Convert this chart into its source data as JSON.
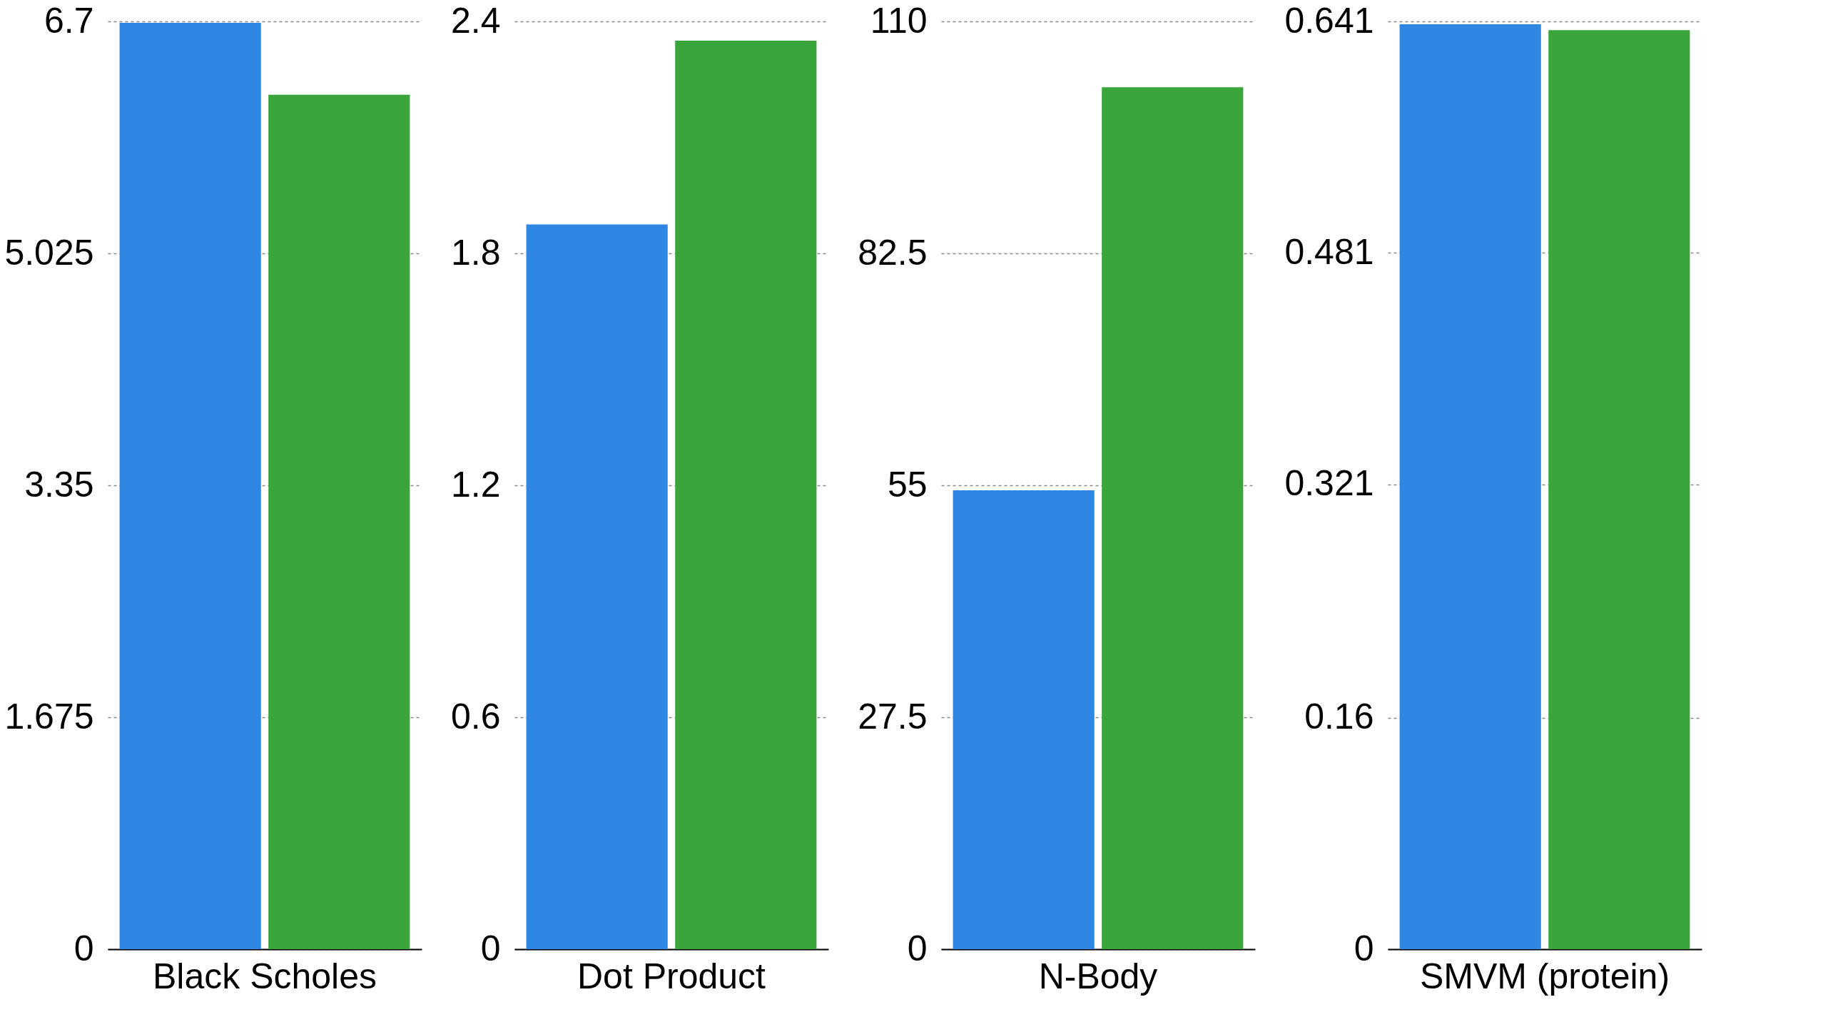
{
  "chart_data": [
    {
      "type": "bar",
      "categories": [
        "Black Scholes"
      ],
      "series": [
        {
          "color": "#2f86e3",
          "values": [
            6.69
          ]
        },
        {
          "color": "#3aa53a",
          "values": [
            6.17
          ]
        }
      ],
      "ylim": [
        0,
        6.7
      ],
      "yticks": [
        0,
        1.675,
        3.35,
        5.025,
        6.7
      ],
      "grid": "y"
    },
    {
      "type": "bar",
      "categories": [
        "Dot Product"
      ],
      "series": [
        {
          "color": "#2f86e3",
          "values": [
            1.875
          ]
        },
        {
          "color": "#3aa53a",
          "values": [
            2.35
          ]
        }
      ],
      "ylim": [
        0,
        2.4
      ],
      "yticks": [
        0,
        0.6,
        1.2,
        1.8,
        2.4
      ],
      "grid": "y"
    },
    {
      "type": "bar",
      "categories": [
        "N-Body"
      ],
      "series": [
        {
          "color": "#2f86e3",
          "values": [
            54.4
          ]
        },
        {
          "color": "#3aa53a",
          "values": [
            102.2
          ]
        }
      ],
      "ylim": [
        0,
        110
      ],
      "yticks": [
        0,
        27.5,
        55,
        82.5,
        110
      ],
      "grid": "y"
    },
    {
      "type": "bar",
      "categories": [
        "SMVM (protein)"
      ],
      "series": [
        {
          "color": "#2f86e3",
          "values": [
            0.639
          ]
        },
        {
          "color": "#3aa53a",
          "values": [
            0.635
          ]
        }
      ],
      "ylim": [
        0,
        0.641
      ],
      "yticks": [
        0,
        0.16,
        0.321,
        0.481,
        0.641
      ],
      "grid": "y"
    }
  ]
}
